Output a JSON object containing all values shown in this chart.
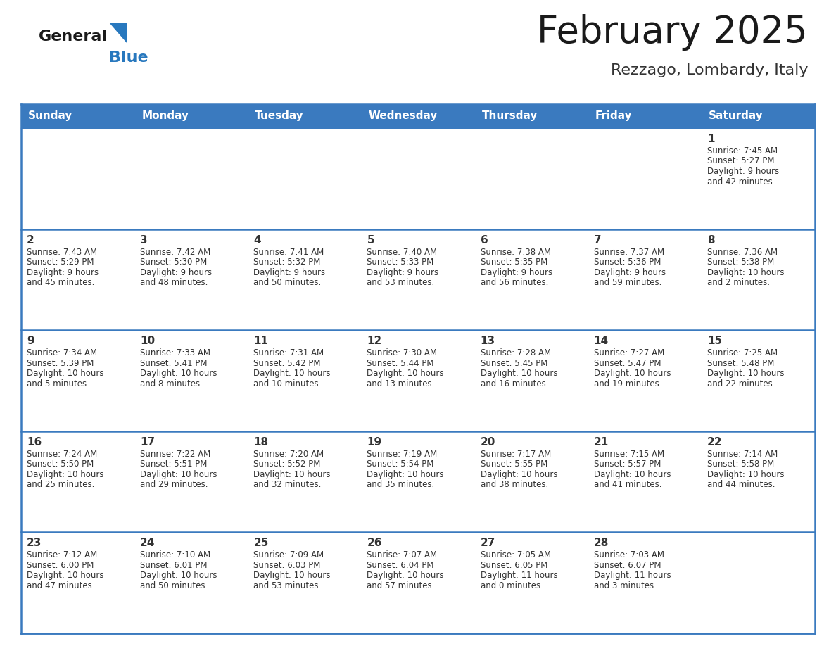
{
  "title": "February 2025",
  "subtitle": "Rezzago, Lombardy, Italy",
  "header_color": "#3a7abf",
  "header_text_color": "#ffffff",
  "border_color": "#3a7abf",
  "day_names": [
    "Sunday",
    "Monday",
    "Tuesday",
    "Wednesday",
    "Thursday",
    "Friday",
    "Saturday"
  ],
  "title_color": "#1a1a1a",
  "subtitle_color": "#333333",
  "text_color": "#333333",
  "days": [
    {
      "day": 1,
      "col": 6,
      "row": 0,
      "sunrise": "7:45 AM",
      "sunset": "5:27 PM",
      "daylight": "9 hours\nand 42 minutes."
    },
    {
      "day": 2,
      "col": 0,
      "row": 1,
      "sunrise": "7:43 AM",
      "sunset": "5:29 PM",
      "daylight": "9 hours\nand 45 minutes."
    },
    {
      "day": 3,
      "col": 1,
      "row": 1,
      "sunrise": "7:42 AM",
      "sunset": "5:30 PM",
      "daylight": "9 hours\nand 48 minutes."
    },
    {
      "day": 4,
      "col": 2,
      "row": 1,
      "sunrise": "7:41 AM",
      "sunset": "5:32 PM",
      "daylight": "9 hours\nand 50 minutes."
    },
    {
      "day": 5,
      "col": 3,
      "row": 1,
      "sunrise": "7:40 AM",
      "sunset": "5:33 PM",
      "daylight": "9 hours\nand 53 minutes."
    },
    {
      "day": 6,
      "col": 4,
      "row": 1,
      "sunrise": "7:38 AM",
      "sunset": "5:35 PM",
      "daylight": "9 hours\nand 56 minutes."
    },
    {
      "day": 7,
      "col": 5,
      "row": 1,
      "sunrise": "7:37 AM",
      "sunset": "5:36 PM",
      "daylight": "9 hours\nand 59 minutes."
    },
    {
      "day": 8,
      "col": 6,
      "row": 1,
      "sunrise": "7:36 AM",
      "sunset": "5:38 PM",
      "daylight": "10 hours\nand 2 minutes."
    },
    {
      "day": 9,
      "col": 0,
      "row": 2,
      "sunrise": "7:34 AM",
      "sunset": "5:39 PM",
      "daylight": "10 hours\nand 5 minutes."
    },
    {
      "day": 10,
      "col": 1,
      "row": 2,
      "sunrise": "7:33 AM",
      "sunset": "5:41 PM",
      "daylight": "10 hours\nand 8 minutes."
    },
    {
      "day": 11,
      "col": 2,
      "row": 2,
      "sunrise": "7:31 AM",
      "sunset": "5:42 PM",
      "daylight": "10 hours\nand 10 minutes."
    },
    {
      "day": 12,
      "col": 3,
      "row": 2,
      "sunrise": "7:30 AM",
      "sunset": "5:44 PM",
      "daylight": "10 hours\nand 13 minutes."
    },
    {
      "day": 13,
      "col": 4,
      "row": 2,
      "sunrise": "7:28 AM",
      "sunset": "5:45 PM",
      "daylight": "10 hours\nand 16 minutes."
    },
    {
      "day": 14,
      "col": 5,
      "row": 2,
      "sunrise": "7:27 AM",
      "sunset": "5:47 PM",
      "daylight": "10 hours\nand 19 minutes."
    },
    {
      "day": 15,
      "col": 6,
      "row": 2,
      "sunrise": "7:25 AM",
      "sunset": "5:48 PM",
      "daylight": "10 hours\nand 22 minutes."
    },
    {
      "day": 16,
      "col": 0,
      "row": 3,
      "sunrise": "7:24 AM",
      "sunset": "5:50 PM",
      "daylight": "10 hours\nand 25 minutes."
    },
    {
      "day": 17,
      "col": 1,
      "row": 3,
      "sunrise": "7:22 AM",
      "sunset": "5:51 PM",
      "daylight": "10 hours\nand 29 minutes."
    },
    {
      "day": 18,
      "col": 2,
      "row": 3,
      "sunrise": "7:20 AM",
      "sunset": "5:52 PM",
      "daylight": "10 hours\nand 32 minutes."
    },
    {
      "day": 19,
      "col": 3,
      "row": 3,
      "sunrise": "7:19 AM",
      "sunset": "5:54 PM",
      "daylight": "10 hours\nand 35 minutes."
    },
    {
      "day": 20,
      "col": 4,
      "row": 3,
      "sunrise": "7:17 AM",
      "sunset": "5:55 PM",
      "daylight": "10 hours\nand 38 minutes."
    },
    {
      "day": 21,
      "col": 5,
      "row": 3,
      "sunrise": "7:15 AM",
      "sunset": "5:57 PM",
      "daylight": "10 hours\nand 41 minutes."
    },
    {
      "day": 22,
      "col": 6,
      "row": 3,
      "sunrise": "7:14 AM",
      "sunset": "5:58 PM",
      "daylight": "10 hours\nand 44 minutes."
    },
    {
      "day": 23,
      "col": 0,
      "row": 4,
      "sunrise": "7:12 AM",
      "sunset": "6:00 PM",
      "daylight": "10 hours\nand 47 minutes."
    },
    {
      "day": 24,
      "col": 1,
      "row": 4,
      "sunrise": "7:10 AM",
      "sunset": "6:01 PM",
      "daylight": "10 hours\nand 50 minutes."
    },
    {
      "day": 25,
      "col": 2,
      "row": 4,
      "sunrise": "7:09 AM",
      "sunset": "6:03 PM",
      "daylight": "10 hours\nand 53 minutes."
    },
    {
      "day": 26,
      "col": 3,
      "row": 4,
      "sunrise": "7:07 AM",
      "sunset": "6:04 PM",
      "daylight": "10 hours\nand 57 minutes."
    },
    {
      "day": 27,
      "col": 4,
      "row": 4,
      "sunrise": "7:05 AM",
      "sunset": "6:05 PM",
      "daylight": "11 hours\nand 0 minutes."
    },
    {
      "day": 28,
      "col": 5,
      "row": 4,
      "sunrise": "7:03 AM",
      "sunset": "6:07 PM",
      "daylight": "11 hours\nand 3 minutes."
    }
  ],
  "num_rows": 5,
  "num_cols": 7,
  "logo_general_color": "#1a1a1a",
  "logo_blue_color": "#2878be"
}
